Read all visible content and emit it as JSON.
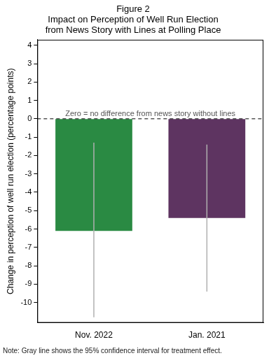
{
  "chart_data": {
    "type": "bar",
    "title": [
      "Figure 2",
      "Impact on Perception of Well Run Election",
      "from News Story with Lines at Polling Place"
    ],
    "y_label": "Change in perception of well run election (percentage points)",
    "categories": [
      "Nov. 2022",
      "Jan. 2021"
    ],
    "values": [
      -6.1,
      -5.4
    ],
    "colors": [
      "#2a8a43",
      "#5e3461"
    ],
    "ci_lower": [
      -10.8,
      -9.4
    ],
    "ci_upper": [
      -1.3,
      -1.4
    ],
    "ylim": [
      -11.1,
      4.3
    ],
    "yticks": [
      -10,
      -9,
      -8,
      -7,
      -6,
      -5,
      -4,
      -3,
      -2,
      -1,
      0,
      1,
      2,
      3,
      4
    ],
    "grid": false,
    "reference_line": {
      "y": 0,
      "label": "Zero = no difference from news story without lines",
      "line_style": "dashed"
    },
    "note": "Note: Gray line shows the 95% confidence interval for treatment effect."
  }
}
